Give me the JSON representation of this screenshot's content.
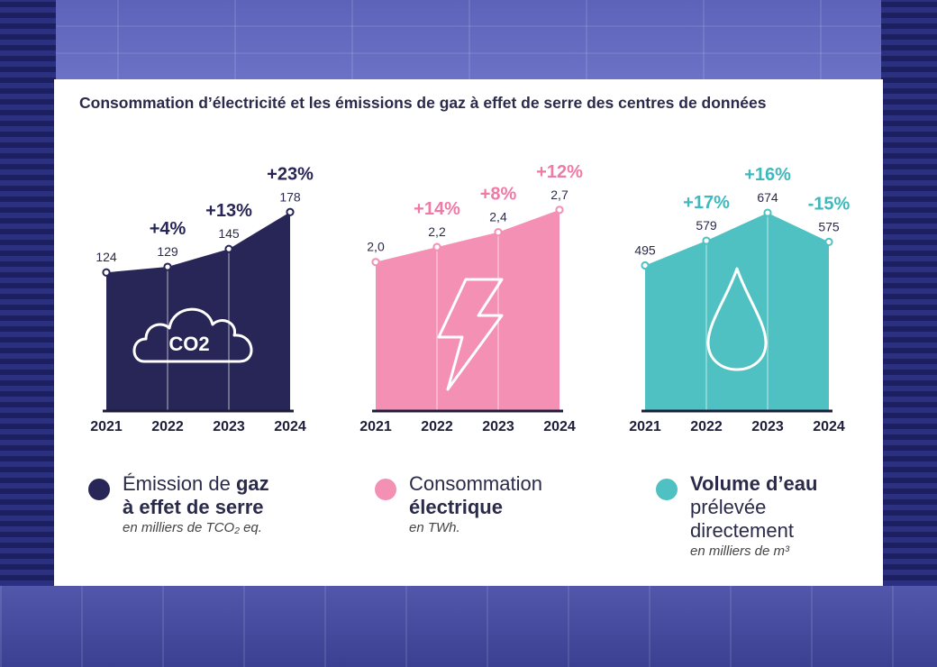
{
  "title": "Consommation d’électricité et les émissions de gaz à effet de serre des centres de données",
  "chart_data": [
    {
      "type": "area",
      "categories": [
        "2021",
        "2022",
        "2023",
        "2024"
      ],
      "values": [
        124,
        129,
        145,
        178
      ],
      "value_labels": [
        "124",
        "129",
        "145",
        "178"
      ],
      "growth_labels": [
        "",
        "+4%",
        "+13%",
        "+23%"
      ],
      "color": "#272657",
      "label_color": "#272657",
      "icon": "co2-cloud-icon",
      "icon_text": "CO2",
      "ylim": [
        0,
        200
      ]
    },
    {
      "type": "area",
      "categories": [
        "2021",
        "2022",
        "2023",
        "2024"
      ],
      "values": [
        2.0,
        2.2,
        2.4,
        2.7
      ],
      "value_labels": [
        "2,0",
        "2,2",
        "2,4",
        "2,7"
      ],
      "growth_labels": [
        "",
        "+14%",
        "+8%",
        "+12%"
      ],
      "color": "#f490b4",
      "label_color": "#f07aa6",
      "icon": "lightning-icon",
      "ylim": [
        0,
        3.0
      ]
    },
    {
      "type": "area",
      "categories": [
        "2021",
        "2022",
        "2023",
        "2024"
      ],
      "values": [
        495,
        579,
        674,
        575
      ],
      "value_labels": [
        "495",
        "579",
        "674",
        "575"
      ],
      "growth_labels": [
        "",
        "+17%",
        "+16%",
        "-15%"
      ],
      "color": "#4fc1c3",
      "label_color": "#3fb9bd",
      "icon": "water-drop-icon",
      "ylim": [
        0,
        760
      ]
    }
  ],
  "legend": [
    {
      "color": "#272657",
      "pre": "Émission de ",
      "bold": "gaz",
      "line2_pre": "",
      "line2_bold": "à effet de serre",
      "unit": "en milliers de TCO₂ eq."
    },
    {
      "color": "#f490b4",
      "pre": "Consommation",
      "bold": "",
      "line2_pre": "",
      "line2_bold": "électrique",
      "unit": "en TWh."
    },
    {
      "color": "#4fc1c3",
      "pre": "",
      "bold": "Volume d’eau",
      "line2_pre": "prélevée",
      "line3": "directement",
      "line2_bold": "",
      "unit": "en milliers de m³"
    }
  ]
}
